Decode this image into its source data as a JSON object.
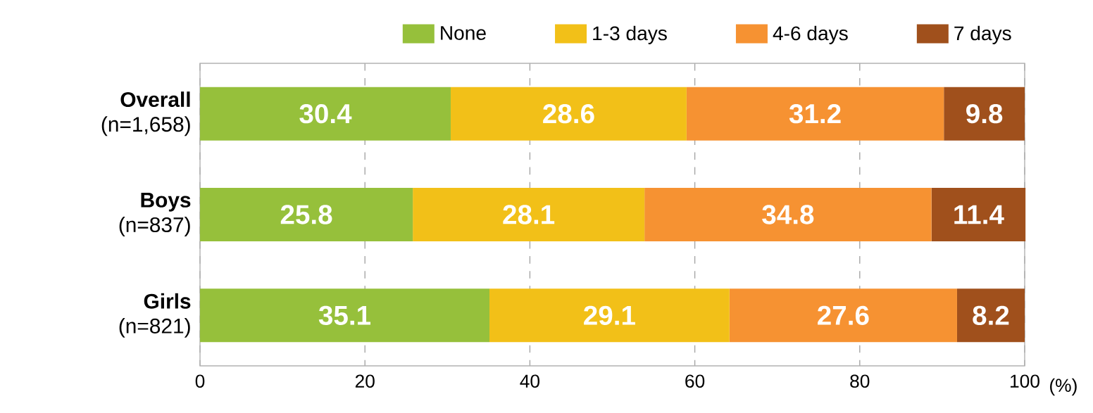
{
  "chart_data": {
    "type": "bar",
    "orientation": "horizontal",
    "stacked": true,
    "categories": [
      "**Overall** (n=1,658)",
      "**Boys** (n=837)",
      "**Girls** (n=821)"
    ],
    "series": [
      {
        "name": "None",
        "color": "#96c03b",
        "values": [
          30.4,
          25.8,
          35.1
        ]
      },
      {
        "name": "1-3 days",
        "color": "#f2c018",
        "values": [
          28.6,
          28.1,
          29.1
        ]
      },
      {
        "name": "4-6 days",
        "color": "#f69232",
        "values": [
          31.2,
          34.8,
          27.6
        ]
      },
      {
        "name": "7 days",
        "color": "#a0501c",
        "values": [
          9.8,
          11.4,
          8.2
        ]
      }
    ],
    "xlabel": "(%)",
    "xlim": [
      0,
      100
    ],
    "xticks": [
      0,
      20,
      40,
      60,
      80,
      100
    ],
    "grid": "x",
    "legend": "top right",
    "data_labels": true
  }
}
